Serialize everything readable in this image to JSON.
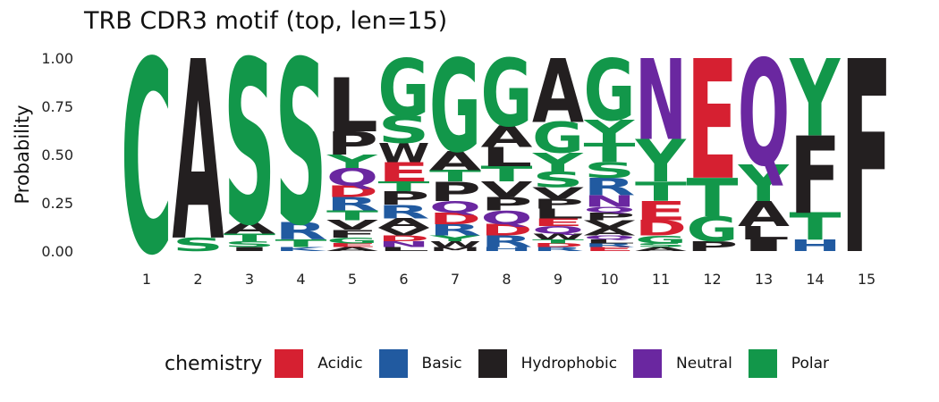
{
  "chart_data": {
    "type": "sequence-logo",
    "title": "TRB CDR3 motif (top, len=15)",
    "ylabel": "Probability",
    "ylim": [
      0,
      1
    ],
    "yticks": [
      "0.00",
      "0.25",
      "0.50",
      "0.75",
      "1.00"
    ],
    "positions": [
      "1",
      "2",
      "3",
      "4",
      "5",
      "6",
      "7",
      "8",
      "9",
      "10",
      "11",
      "12",
      "13",
      "14",
      "15"
    ],
    "legend": {
      "title": "chemistry",
      "entries": [
        {
          "name": "Acidic",
          "color": "#d62031"
        },
        {
          "name": "Basic",
          "color": "#215aa0"
        },
        {
          "name": "Hydrophobic",
          "color": "#231f20"
        },
        {
          "name": "Neutral",
          "color": "#6a27a0"
        },
        {
          "name": "Polar",
          "color": "#12974a"
        }
      ]
    },
    "stacks": [
      [
        {
          "aa": "C",
          "p": 1.0
        }
      ],
      [
        {
          "aa": "S",
          "p": 0.07
        },
        {
          "aa": "A",
          "p": 0.93
        }
      ],
      [
        {
          "aa": "I",
          "p": 0.02
        },
        {
          "aa": "S",
          "p": 0.03
        },
        {
          "aa": "T",
          "p": 0.04
        },
        {
          "aa": "A",
          "p": 0.06
        },
        {
          "aa": "S",
          "p": 0.85
        }
      ],
      [
        {
          "aa": "K",
          "p": 0.02
        },
        {
          "aa": "T",
          "p": 0.04
        },
        {
          "aa": "R",
          "p": 0.09
        },
        {
          "aa": "S",
          "p": 0.85
        }
      ],
      [
        {
          "aa": "A",
          "p": 0.02
        },
        {
          "aa": "E",
          "p": 0.02
        },
        {
          "aa": "G",
          "p": 0.03
        },
        {
          "aa": "F",
          "p": 0.04
        },
        {
          "aa": "V",
          "p": 0.05
        },
        {
          "aa": "T",
          "p": 0.05
        },
        {
          "aa": "R",
          "p": 0.07
        },
        {
          "aa": "D",
          "p": 0.06
        },
        {
          "aa": "Q",
          "p": 0.09
        },
        {
          "aa": "Y",
          "p": 0.07
        },
        {
          "aa": "P",
          "p": 0.12
        },
        {
          "aa": "L",
          "p": 0.28
        }
      ],
      [
        {
          "aa": "L",
          "p": 0.02
        },
        {
          "aa": "N",
          "p": 0.03
        },
        {
          "aa": "D",
          "p": 0.03
        },
        {
          "aa": "V",
          "p": 0.04
        },
        {
          "aa": "A",
          "p": 0.05
        },
        {
          "aa": "R",
          "p": 0.07
        },
        {
          "aa": "P",
          "p": 0.07
        },
        {
          "aa": "T",
          "p": 0.05
        },
        {
          "aa": "E",
          "p": 0.1
        },
        {
          "aa": "W",
          "p": 0.1
        },
        {
          "aa": "S",
          "p": 0.14
        },
        {
          "aa": "G",
          "p": 0.3
        }
      ],
      [
        {
          "aa": "M",
          "p": 0.02
        },
        {
          "aa": "W",
          "p": 0.03
        },
        {
          "aa": "Y",
          "p": 0.03
        },
        {
          "aa": "R",
          "p": 0.06
        },
        {
          "aa": "D",
          "p": 0.06
        },
        {
          "aa": "Q",
          "p": 0.06
        },
        {
          "aa": "P",
          "p": 0.1
        },
        {
          "aa": "T",
          "p": 0.06
        },
        {
          "aa": "A",
          "p": 0.1
        },
        {
          "aa": "G",
          "p": 0.48
        }
      ],
      [
        {
          "aa": "H",
          "p": 0.02
        },
        {
          "aa": "R",
          "p": 0.06
        },
        {
          "aa": "D",
          "p": 0.06
        },
        {
          "aa": "Q",
          "p": 0.07
        },
        {
          "aa": "P",
          "p": 0.07
        },
        {
          "aa": "V",
          "p": 0.08
        },
        {
          "aa": "T",
          "p": 0.08
        },
        {
          "aa": "L",
          "p": 0.1
        },
        {
          "aa": "A",
          "p": 0.11
        },
        {
          "aa": "G",
          "p": 0.35
        }
      ],
      [
        {
          "aa": "R",
          "p": 0.02
        },
        {
          "aa": "D",
          "p": 0.02
        },
        {
          "aa": "T",
          "p": 0.02
        },
        {
          "aa": "W",
          "p": 0.03
        },
        {
          "aa": "Q",
          "p": 0.04
        },
        {
          "aa": "E",
          "p": 0.04
        },
        {
          "aa": "L",
          "p": 0.05
        },
        {
          "aa": "P",
          "p": 0.05
        },
        {
          "aa": "V",
          "p": 0.06
        },
        {
          "aa": "S",
          "p": 0.08
        },
        {
          "aa": "Y",
          "p": 0.1
        },
        {
          "aa": "G",
          "p": 0.16
        },
        {
          "aa": "A",
          "p": 0.33
        }
      ],
      [
        {
          "aa": "E",
          "p": 0.02
        },
        {
          "aa": "R",
          "p": 0.02
        },
        {
          "aa": "L",
          "p": 0.02
        },
        {
          "aa": "Q",
          "p": 0.02
        },
        {
          "aa": "A",
          "p": 0.04
        },
        {
          "aa": "V",
          "p": 0.04
        },
        {
          "aa": "P",
          "p": 0.04
        },
        {
          "aa": "Q",
          "p": 0.03
        },
        {
          "aa": "N",
          "p": 0.06
        },
        {
          "aa": "R",
          "p": 0.09
        },
        {
          "aa": "S",
          "p": 0.08
        },
        {
          "aa": "T",
          "p": 0.1
        },
        {
          "aa": "Y",
          "p": 0.12
        },
        {
          "aa": "G",
          "p": 0.32
        }
      ],
      [
        {
          "aa": "A",
          "p": 0.02
        },
        {
          "aa": "S",
          "p": 0.02
        },
        {
          "aa": "G",
          "p": 0.04
        },
        {
          "aa": "D",
          "p": 0.08
        },
        {
          "aa": "E",
          "p": 0.1
        },
        {
          "aa": "T",
          "p": 0.1
        },
        {
          "aa": "Y",
          "p": 0.22
        },
        {
          "aa": "N",
          "p": 0.42
        }
      ],
      [
        {
          "aa": "P",
          "p": 0.05
        },
        {
          "aa": "G",
          "p": 0.13
        },
        {
          "aa": "T",
          "p": 0.2
        },
        {
          "aa": "E",
          "p": 0.62
        }
      ],
      [
        {
          "aa": "I",
          "p": 0.06
        },
        {
          "aa": "L",
          "p": 0.07
        },
        {
          "aa": "A",
          "p": 0.13
        },
        {
          "aa": "Y",
          "p": 0.19
        },
        {
          "aa": "Q",
          "p": 0.55
        }
      ],
      [
        {
          "aa": "H",
          "p": 0.06
        },
        {
          "aa": "T",
          "p": 0.14
        },
        {
          "aa": "F",
          "p": 0.4
        },
        {
          "aa": "Y",
          "p": 0.4
        }
      ],
      [
        {
          "aa": "F",
          "p": 1.0
        }
      ]
    ]
  }
}
